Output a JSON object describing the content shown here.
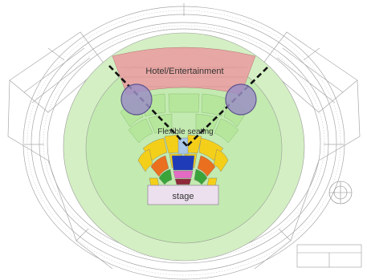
{
  "labels": {
    "hotel": "Hotel/Entertainment",
    "flex": "Flexible seating",
    "stage": "stage"
  },
  "colors": {
    "background": "#ffffff",
    "drawing_lines": "#9a9a9a",
    "outer_green": "#d4efc4",
    "inner_green": "#bfe8ac",
    "hotel_pink": "#e9a4a4",
    "purple_circle": "#9b8fc4",
    "seat_yellow": "#f4cf1a",
    "seat_orange": "#ea6f1e",
    "seat_green": "#3aa43a",
    "seat_blue": "#1f3bb8",
    "seat_pink": "#e46bc3",
    "seat_maroon": "#8e2a3a",
    "seat_lightblue": "#a8c6e6",
    "stage_fill": "#ecdfee",
    "sight_lines": "#111111"
  },
  "title_block": {
    "line1": "",
    "line2": ""
  }
}
